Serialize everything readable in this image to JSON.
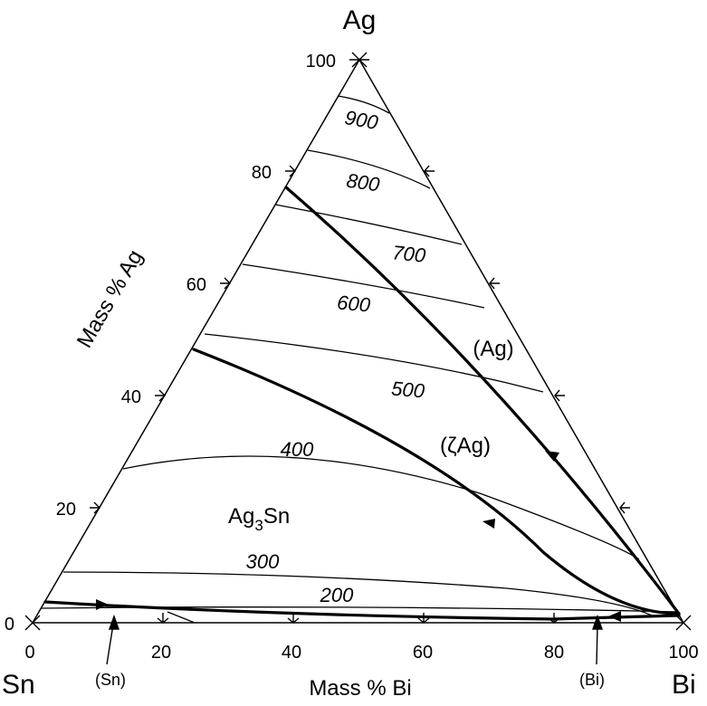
{
  "diagram": {
    "corners": {
      "top": "Ag",
      "left": "Sn",
      "right": "Bi"
    },
    "left_axis": {
      "title": "Mass % Ag",
      "ticks": [
        "100",
        "80",
        "60",
        "40",
        "20",
        "0"
      ]
    },
    "bottom_axis": {
      "title": "Mass % Bi",
      "ticks": [
        "0",
        "20",
        "40",
        "60",
        "80",
        "100"
      ]
    },
    "isotherms": [
      "900",
      "800",
      "700",
      "600",
      "500",
      "400",
      "300",
      "200"
    ],
    "phase_regions": {
      "ag": "(Ag)",
      "zeta_ag": "(ζAg)",
      "ag3sn_base": "Ag",
      "ag3sn_sub": "3",
      "ag3sn_tail": "Sn"
    },
    "annotations": {
      "sn": "(Sn)",
      "bi": "(Bi)"
    }
  }
}
